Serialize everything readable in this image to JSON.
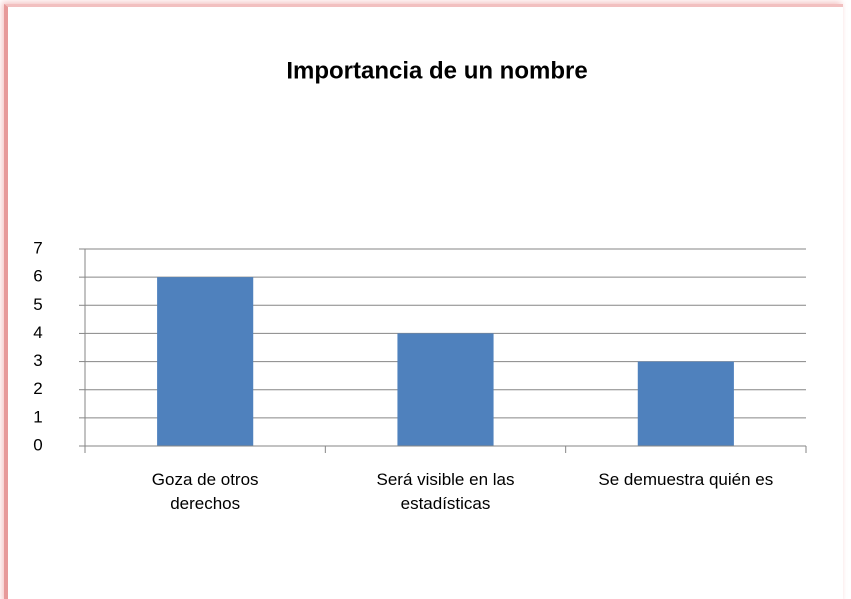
{
  "chart_data": {
    "type": "bar",
    "title": "Importancia de un nombre",
    "categories": [
      "Goza de otros derechos",
      "Será visible en las estadísticas",
      "Se demuestra quién es"
    ],
    "values": [
      6,
      4,
      3
    ],
    "color": "#4f81bd",
    "ylim": [
      0,
      7
    ],
    "yticks": [
      0,
      1,
      2,
      3,
      4,
      5,
      6,
      7
    ],
    "grid": true
  }
}
